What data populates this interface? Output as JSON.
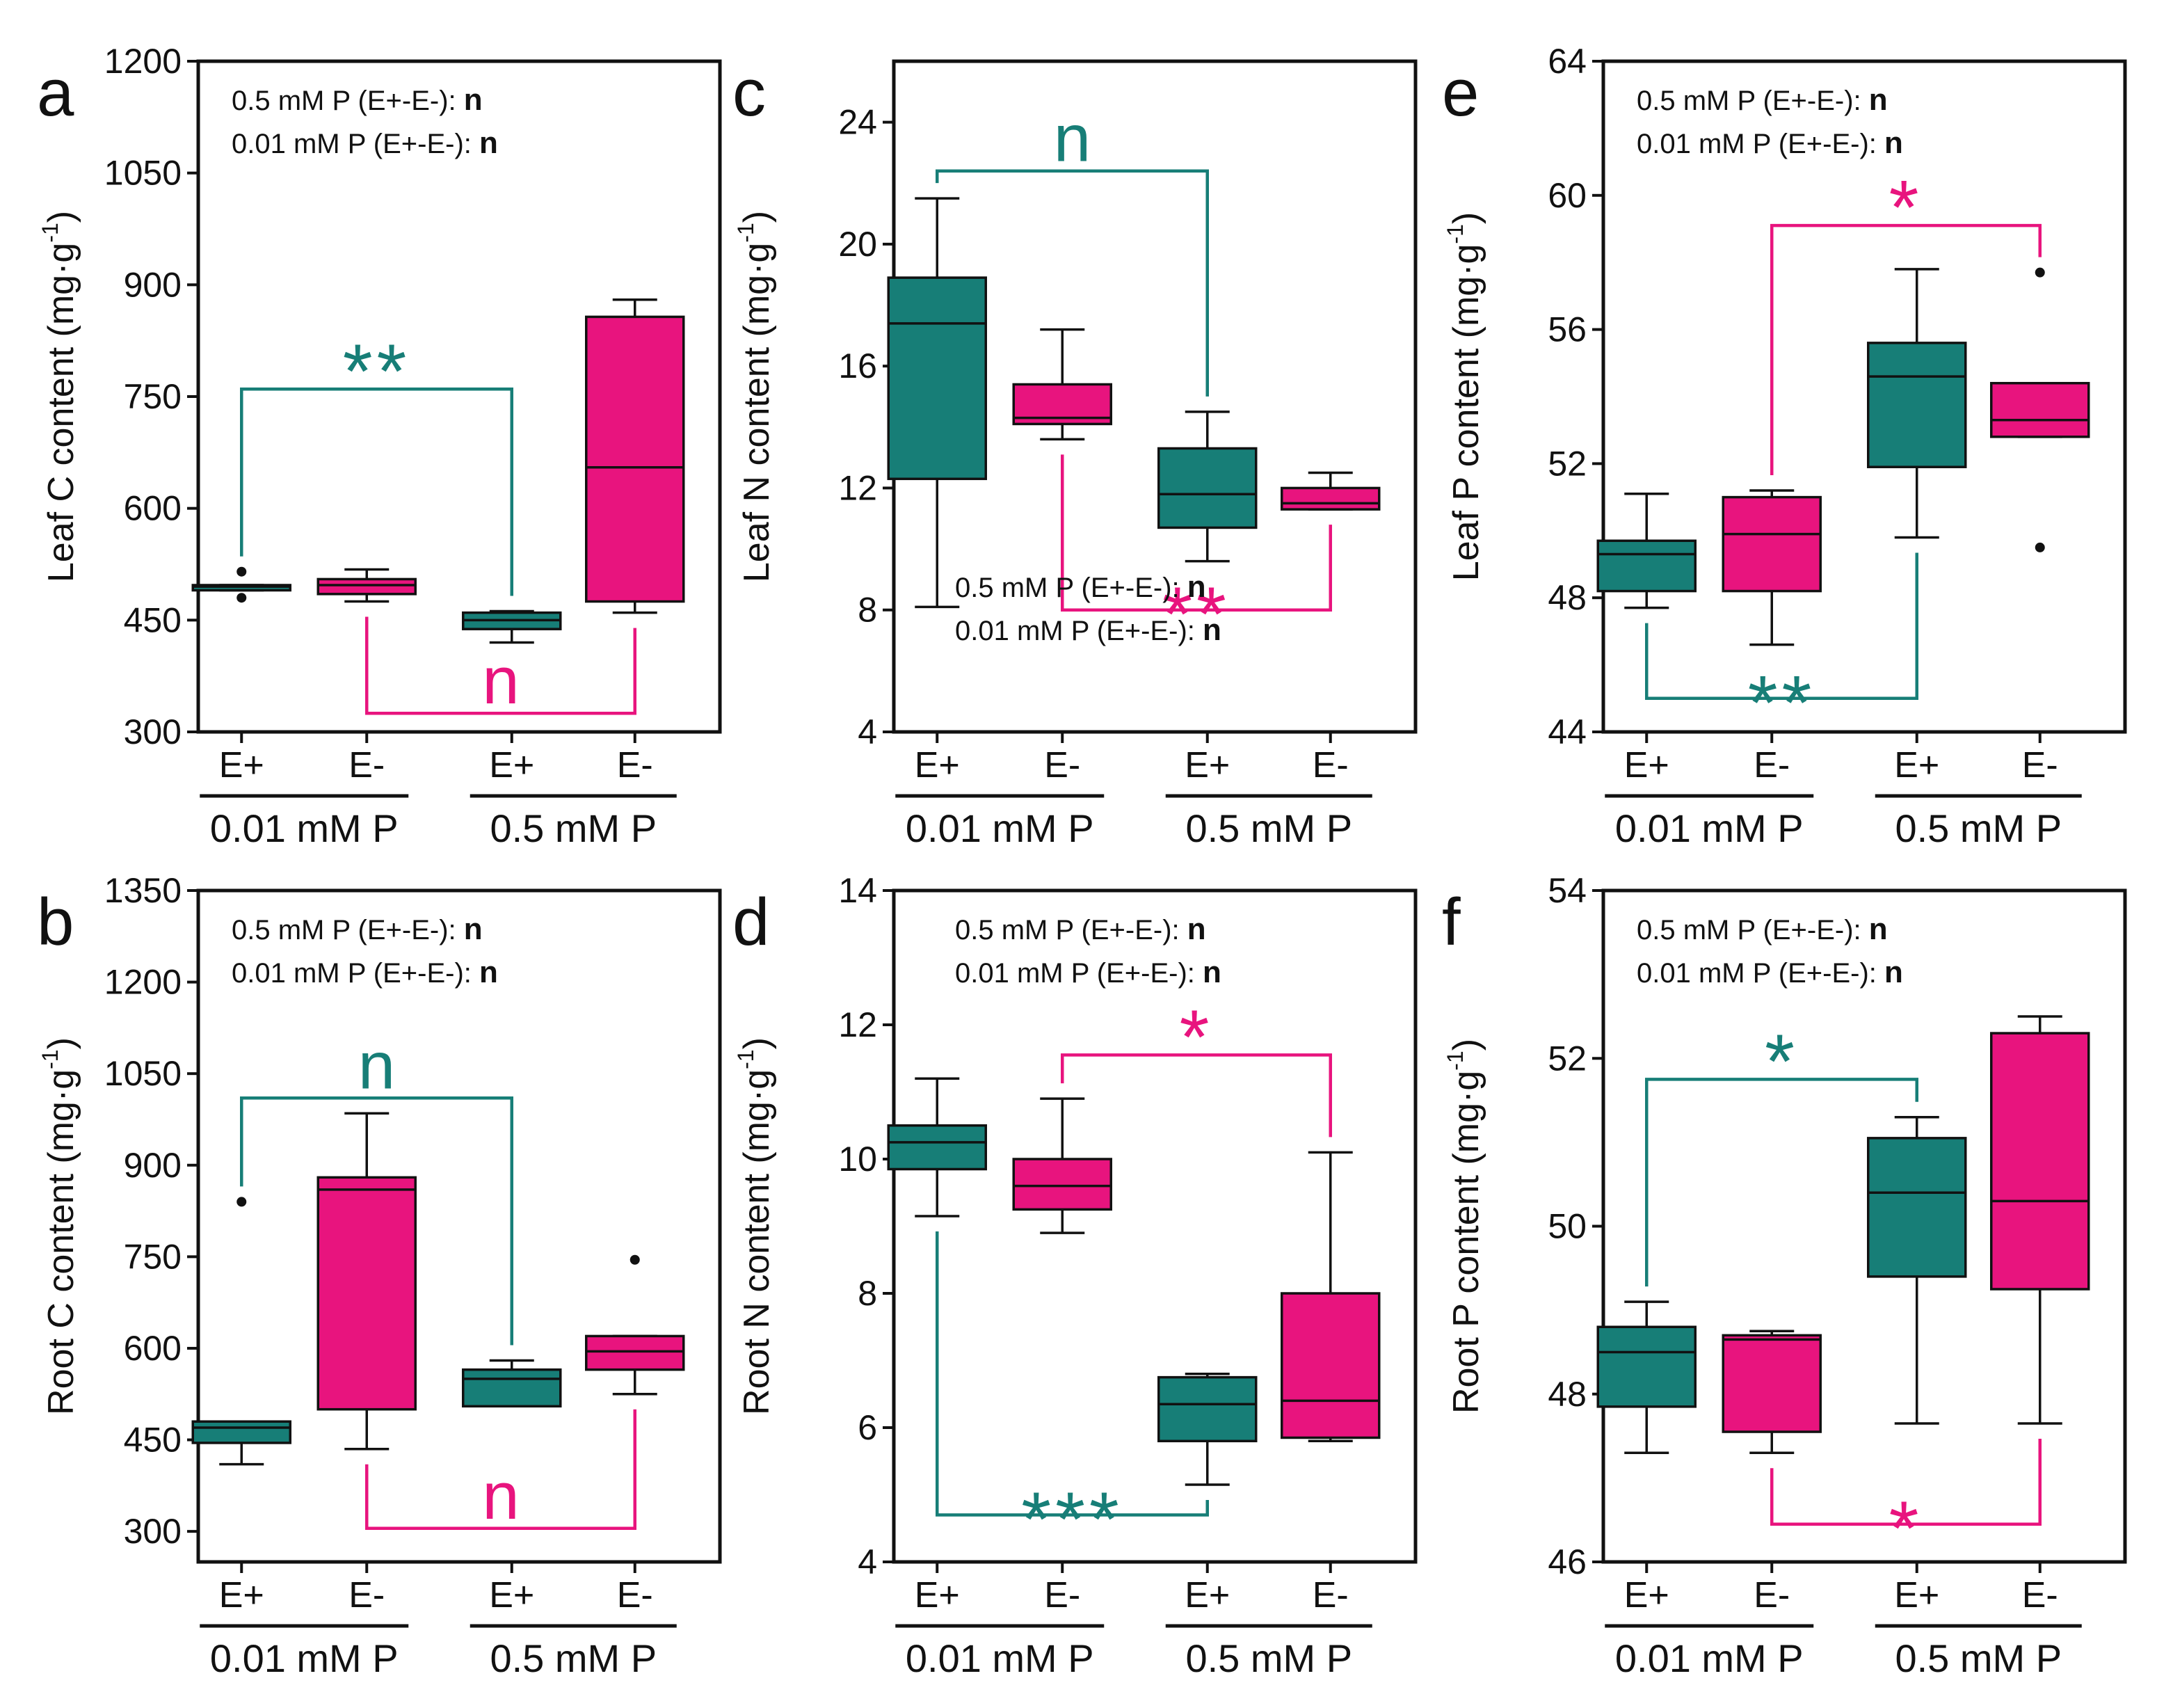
{
  "colors": {
    "teal": "#177e77",
    "pink": "#e8147e",
    "frame": "#111111"
  },
  "chart_data": [
    {
      "type": "box",
      "panel_letter": "a",
      "ylabel": "Leaf C content (mg·g⁻¹)",
      "ylabel_main": "Leaf C content (mg·g",
      "ylabel_sup": "-1",
      "ylabel_end": ")",
      "ylim": [
        300,
        1200
      ],
      "yticks": [
        300,
        450,
        600,
        750,
        900,
        1050,
        1200
      ],
      "categories": [
        "E+",
        "E-",
        "E+",
        "E-"
      ],
      "groups": [
        "0.01 mM P",
        "0.5 mM P"
      ],
      "boxes": [
        {
          "color": "teal",
          "whisker_low": 490,
          "q1": 490,
          "median": 495,
          "q3": 497,
          "whisker_high": 497,
          "outliers": [
            515,
            480
          ]
        },
        {
          "color": "pink",
          "whisker_low": 475,
          "q1": 485,
          "median": 497,
          "q3": 505,
          "whisker_high": 518,
          "outliers": []
        },
        {
          "color": "teal",
          "whisker_low": 420,
          "q1": 438,
          "median": 450,
          "q3": 460,
          "whisker_high": 462,
          "outliers": []
        },
        {
          "color": "pink",
          "whisker_low": 460,
          "q1": 475,
          "median": 655,
          "q3": 857,
          "whisker_high": 880,
          "outliers": []
        }
      ],
      "annotation": {
        "lines": [
          {
            "label": "0.5 mM P (E+-E-):",
            "value": "n"
          },
          {
            "label": "0.01 mM P (E+-E-):",
            "value": "n"
          }
        ],
        "position": "top-left"
      },
      "brackets": [
        {
          "color": "teal",
          "from": 0,
          "to": 2,
          "y": 760,
          "side": "above",
          "label": "**",
          "left_end": 515,
          "right_end": 462
        },
        {
          "color": "pink",
          "from": 1,
          "to": 3,
          "y": 325,
          "side": "below",
          "label": "n",
          "left_end": 475,
          "right_end": 460
        }
      ]
    },
    {
      "type": "box",
      "panel_letter": "c",
      "ylabel": "Leaf N content (mg·g⁻¹)",
      "ylabel_main": "Leaf N content (mg·g",
      "ylabel_sup": "-1",
      "ylabel_end": ")",
      "ylim": [
        4,
        26
      ],
      "yticks": [
        4,
        8,
        12,
        16,
        20,
        24
      ],
      "categories": [
        "E+",
        "E-",
        "E+",
        "E-"
      ],
      "groups": [
        "0.01 mM P",
        "0.5 mM P"
      ],
      "boxes": [
        {
          "color": "teal",
          "whisker_low": 8.1,
          "q1": 12.3,
          "median": 17.4,
          "q3": 18.9,
          "whisker_high": 21.5,
          "outliers": []
        },
        {
          "color": "pink",
          "whisker_low": 13.6,
          "q1": 14.1,
          "median": 14.3,
          "q3": 15.4,
          "whisker_high": 17.2,
          "outliers": []
        },
        {
          "color": "teal",
          "whisker_low": 9.6,
          "q1": 10.7,
          "median": 11.8,
          "q3": 13.3,
          "whisker_high": 14.5,
          "outliers": []
        },
        {
          "color": "pink",
          "whisker_low": 11.3,
          "q1": 11.3,
          "median": 11.5,
          "q3": 12.0,
          "whisker_high": 12.5,
          "outliers": []
        }
      ],
      "annotation": {
        "lines": [
          {
            "label": "0.5 mM P (E+-E-):",
            "value": "n"
          },
          {
            "label": "0.01 mM P (E+-E-):",
            "value": "n"
          }
        ],
        "position": "bottom-center"
      },
      "brackets": [
        {
          "color": "teal",
          "from": 0,
          "to": 2,
          "y": 22.4,
          "side": "above",
          "label": "n",
          "left_end": 21.5,
          "right_end": 14.5
        },
        {
          "color": "pink",
          "from": 1,
          "to": 3,
          "y": 8.0,
          "side": "below",
          "label": "**",
          "left_end": 13.6,
          "right_end": 11.3
        }
      ]
    },
    {
      "type": "box",
      "panel_letter": "e",
      "ylabel": "Leaf P content (mg·g⁻¹)",
      "ylabel_main": "Leaf P content (mg·g",
      "ylabel_sup": "-1",
      "ylabel_end": ")",
      "ylim": [
        44,
        64
      ],
      "yticks": [
        44,
        48,
        52,
        56,
        60,
        64
      ],
      "categories": [
        "E+",
        "E-",
        "E+",
        "E-"
      ],
      "groups": [
        "0.01 mM P",
        "0.5 mM P"
      ],
      "boxes": [
        {
          "color": "teal",
          "whisker_low": 47.7,
          "q1": 48.2,
          "median": 49.3,
          "q3": 49.7,
          "whisker_high": 51.1,
          "outliers": []
        },
        {
          "color": "pink",
          "whisker_low": 46.6,
          "q1": 48.2,
          "median": 49.9,
          "q3": 51.0,
          "whisker_high": 51.2,
          "outliers": []
        },
        {
          "color": "teal",
          "whisker_low": 49.8,
          "q1": 51.9,
          "median": 54.6,
          "q3": 55.6,
          "whisker_high": 57.8,
          "outliers": []
        },
        {
          "color": "pink",
          "whisker_low": 52.8,
          "q1": 52.8,
          "median": 53.3,
          "q3": 54.4,
          "whisker_high": 54.4,
          "outliers": [
            57.7,
            49.5
          ]
        }
      ],
      "annotation": {
        "lines": [
          {
            "label": "0.5 mM P (E+-E-):",
            "value": "n"
          },
          {
            "label": "0.01 mM P (E+-E-):",
            "value": "n"
          }
        ],
        "position": "top-left"
      },
      "brackets": [
        {
          "color": "pink",
          "from": 1,
          "to": 3,
          "y": 59.1,
          "side": "above",
          "label": "*",
          "left_end": 51.2,
          "right_end": 57.7
        },
        {
          "color": "teal",
          "from": 0,
          "to": 2,
          "y": 45.0,
          "side": "below",
          "label": "**",
          "left_end": 47.7,
          "right_end": 49.8
        }
      ]
    },
    {
      "type": "box",
      "panel_letter": "b",
      "ylabel": "Root C content (mg·g⁻¹)",
      "ylabel_main": "Root C content (mg·g",
      "ylabel_sup": "-1",
      "ylabel_end": ")",
      "ylim": [
        250,
        1350
      ],
      "yticks": [
        300,
        450,
        600,
        750,
        900,
        1050,
        1200,
        1350
      ],
      "categories": [
        "E+",
        "E-",
        "E+",
        "E-"
      ],
      "groups": [
        "0.01 mM P",
        "0.5 mM P"
      ],
      "boxes": [
        {
          "color": "teal",
          "whisker_low": 410,
          "q1": 445,
          "median": 470,
          "q3": 480,
          "whisker_high": 480,
          "outliers": [
            840
          ]
        },
        {
          "color": "pink",
          "whisker_low": 435,
          "q1": 500,
          "median": 860,
          "q3": 880,
          "whisker_high": 985,
          "outliers": []
        },
        {
          "color": "teal",
          "whisker_low": 505,
          "q1": 505,
          "median": 550,
          "q3": 565,
          "whisker_high": 580,
          "outliers": []
        },
        {
          "color": "pink",
          "whisker_low": 525,
          "q1": 565,
          "median": 595,
          "q3": 620,
          "whisker_high": 620,
          "outliers": [
            745
          ]
        }
      ],
      "annotation": {
        "lines": [
          {
            "label": "0.5 mM P (E+-E-):",
            "value": "n"
          },
          {
            "label": "0.01 mM P (E+-E-):",
            "value": "n"
          }
        ],
        "position": "top-left"
      },
      "brackets": [
        {
          "color": "teal",
          "from": 0,
          "to": 2,
          "y": 1010,
          "side": "above",
          "label": "n",
          "left_end": 840,
          "right_end": 580
        },
        {
          "color": "pink",
          "from": 1,
          "to": 3,
          "y": 305,
          "side": "below",
          "label": "n",
          "left_end": 435,
          "right_end": 525
        }
      ]
    },
    {
      "type": "box",
      "panel_letter": "d",
      "ylabel": "Root N content (mg·g⁻¹)",
      "ylabel_main": "Root N content (mg·g",
      "ylabel_sup": "-1",
      "ylabel_end": ")",
      "ylim": [
        4,
        14
      ],
      "yticks": [
        4,
        6,
        8,
        10,
        12,
        14
      ],
      "categories": [
        "E+",
        "E-",
        "E+",
        "E-"
      ],
      "groups": [
        "0.01 mM P",
        "0.5 mM P"
      ],
      "boxes": [
        {
          "color": "teal",
          "whisker_low": 9.15,
          "q1": 9.85,
          "median": 10.25,
          "q3": 10.5,
          "whisker_high": 11.2,
          "outliers": []
        },
        {
          "color": "pink",
          "whisker_low": 8.9,
          "q1": 9.25,
          "median": 9.6,
          "q3": 10.0,
          "whisker_high": 10.9,
          "outliers": []
        },
        {
          "color": "teal",
          "whisker_low": 5.15,
          "q1": 5.8,
          "median": 6.35,
          "q3": 6.75,
          "whisker_high": 6.8,
          "outliers": []
        },
        {
          "color": "pink",
          "whisker_low": 5.8,
          "q1": 5.85,
          "median": 6.4,
          "q3": 8.0,
          "whisker_high": 10.1,
          "outliers": []
        }
      ],
      "annotation": {
        "lines": [
          {
            "label": "0.5 mM P (E+-E-):",
            "value": "n"
          },
          {
            "label": "0.01 mM P (E+-E-):",
            "value": "n"
          }
        ],
        "position": "top-right"
      },
      "brackets": [
        {
          "color": "pink",
          "from": 1,
          "to": 3,
          "y": 11.55,
          "side": "above",
          "label": "*",
          "left_end": 10.9,
          "right_end": 10.1
        },
        {
          "color": "teal",
          "from": 0,
          "to": 2,
          "y": 4.7,
          "side": "below",
          "label": "***",
          "left_end": 9.15,
          "right_end": 5.15
        }
      ]
    },
    {
      "type": "box",
      "panel_letter": "f",
      "ylabel": "Root P content (mg·g⁻¹)",
      "ylabel_main": "Root P content (mg·g",
      "ylabel_sup": "-1",
      "ylabel_end": ")",
      "ylim": [
        46,
        54
      ],
      "yticks": [
        46,
        48,
        50,
        52,
        54
      ],
      "categories": [
        "E+",
        "E-",
        "E+",
        "E-"
      ],
      "groups": [
        "0.01 mM P",
        "0.5 mM P"
      ],
      "boxes": [
        {
          "color": "teal",
          "whisker_low": 47.3,
          "q1": 47.85,
          "median": 48.5,
          "q3": 48.8,
          "whisker_high": 49.1,
          "outliers": []
        },
        {
          "color": "pink",
          "whisker_low": 47.3,
          "q1": 47.55,
          "median": 48.65,
          "q3": 48.7,
          "whisker_high": 48.75,
          "outliers": []
        },
        {
          "color": "teal",
          "whisker_low": 47.65,
          "q1": 49.4,
          "median": 50.4,
          "q3": 51.05,
          "whisker_high": 51.3,
          "outliers": []
        },
        {
          "color": "pink",
          "whisker_low": 47.65,
          "q1": 49.25,
          "median": 50.3,
          "q3": 52.3,
          "whisker_high": 52.5,
          "outliers": []
        }
      ],
      "annotation": {
        "lines": [
          {
            "label": "0.5 mM P (E+-E-):",
            "value": "n"
          },
          {
            "label": "0.01 mM P (E+-E-):",
            "value": "n"
          }
        ],
        "position": "top-left"
      },
      "brackets": [
        {
          "color": "teal",
          "from": 0,
          "to": 2,
          "y": 51.75,
          "side": "above",
          "label": "*",
          "left_end": 49.1,
          "right_end": 51.3
        },
        {
          "color": "pink",
          "from": 1,
          "to": 3,
          "y": 46.45,
          "side": "below",
          "label": "*",
          "left_end": 47.3,
          "right_end": 47.65
        }
      ]
    }
  ]
}
